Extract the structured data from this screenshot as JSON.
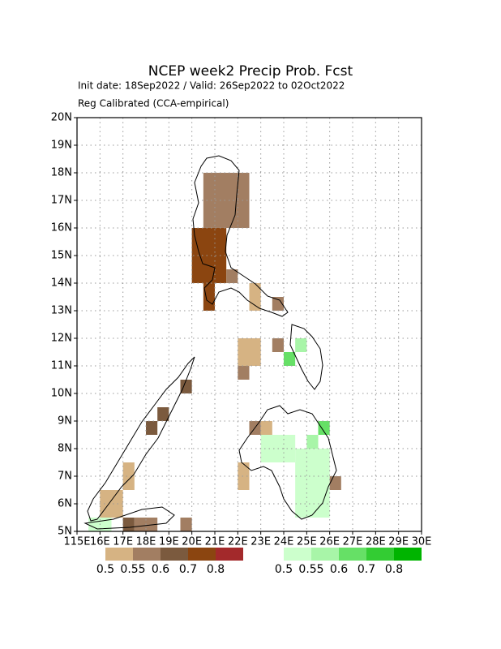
{
  "chart_data": {
    "type": "map",
    "title": "NCEP week2 Precip Prob. Fcst",
    "subtitle": "Init date: 18Sep2022 / Valid: 26Sep2022 to 02Oct2022",
    "note": "Reg Calibrated (CCA-empirical)",
    "xlim": [
      115,
      130
    ],
    "ylim": [
      5,
      20
    ],
    "xticks": [
      {
        "value": 115,
        "label": "115E"
      },
      {
        "value": 116,
        "label": "16E"
      },
      {
        "value": 117,
        "label": "17E"
      },
      {
        "value": 118,
        "label": "18E"
      },
      {
        "value": 119,
        "label": "19E"
      },
      {
        "value": 120,
        "label": "20E"
      },
      {
        "value": 121,
        "label": "21E"
      },
      {
        "value": 122,
        "label": "22E"
      },
      {
        "value": 123,
        "label": "23E"
      },
      {
        "value": 124,
        "label": "24E"
      },
      {
        "value": 125,
        "label": "25E"
      },
      {
        "value": 126,
        "label": "26E"
      },
      {
        "value": 127,
        "label": "27E"
      },
      {
        "value": 128,
        "label": "28E"
      },
      {
        "value": 129,
        "label": "29E"
      },
      {
        "value": 130,
        "label": "30E"
      }
    ],
    "yticks": [
      {
        "value": 5,
        "label": "5N"
      },
      {
        "value": 6,
        "label": "6N"
      },
      {
        "value": 7,
        "label": "7N"
      },
      {
        "value": 8,
        "label": "8N"
      },
      {
        "value": 9,
        "label": "9N"
      },
      {
        "value": 10,
        "label": "10N"
      },
      {
        "value": 11,
        "label": "11N"
      },
      {
        "value": 12,
        "label": "12N"
      },
      {
        "value": 13,
        "label": "13N"
      },
      {
        "value": 14,
        "label": "14N"
      },
      {
        "value": 15,
        "label": "15N"
      },
      {
        "value": 16,
        "label": "16N"
      },
      {
        "value": 17,
        "label": "17N"
      },
      {
        "value": 18,
        "label": "18N"
      },
      {
        "value": 19,
        "label": "19N"
      },
      {
        "value": 20,
        "label": "20N"
      }
    ],
    "grid": true,
    "legends": [
      {
        "colors": [
          "#d6b383",
          "#a27e62",
          "#7b5a3e",
          "#8b4510",
          "#a3292b"
        ],
        "labels": [
          0.5,
          0.55,
          0.6,
          0.7,
          0.8
        ]
      },
      {
        "colors": [
          "#ccffcc",
          "#a8f5a8",
          "#66e066",
          "#33cc33",
          "#00b400"
        ],
        "labels": [
          0.5,
          0.55,
          0.6,
          0.7,
          0.8
        ]
      }
    ],
    "regions": [
      {
        "legend": 0,
        "level": 1,
        "lon": [
          120.5,
          122.5
        ],
        "lat": [
          16,
          18
        ]
      },
      {
        "legend": 0,
        "level": 3,
        "lon": [
          120,
          121.5
        ],
        "lat": [
          14,
          16
        ]
      },
      {
        "legend": 0,
        "level": 3,
        "lon": [
          120.5,
          121
        ],
        "lat": [
          13,
          14
        ]
      },
      {
        "legend": 0,
        "level": 1,
        "lon": [
          121.5,
          122
        ],
        "lat": [
          14,
          14.5
        ]
      },
      {
        "legend": 0,
        "level": 0,
        "lon": [
          122.5,
          123
        ],
        "lat": [
          13,
          14
        ]
      },
      {
        "legend": 0,
        "level": 1,
        "lon": [
          123.5,
          124
        ],
        "lat": [
          13,
          13.5
        ]
      },
      {
        "legend": 0,
        "level": 1,
        "lon": [
          123.5,
          124
        ],
        "lat": [
          11.5,
          12
        ]
      },
      {
        "legend": 0,
        "level": 0,
        "lon": [
          122,
          123
        ],
        "lat": [
          11,
          12
        ]
      },
      {
        "legend": 0,
        "level": 1,
        "lon": [
          122,
          122.5
        ],
        "lat": [
          10.5,
          11
        ]
      },
      {
        "legend": 0,
        "level": 1,
        "lon": [
          122.5,
          123
        ],
        "lat": [
          8.5,
          9
        ]
      },
      {
        "legend": 0,
        "level": 0,
        "lon": [
          123,
          123.5
        ],
        "lat": [
          8.5,
          9
        ]
      },
      {
        "legend": 0,
        "level": 0,
        "lon": [
          122,
          122.5
        ],
        "lat": [
          6.5,
          7.5
        ]
      },
      {
        "legend": 0,
        "level": 1,
        "lon": [
          123,
          124
        ],
        "lat": [
          7.5,
          8
        ]
      },
      {
        "legend": 0,
        "level": 0,
        "lon": [
          125,
          125.5
        ],
        "lat": [
          6,
          7.5
        ]
      },
      {
        "legend": 0,
        "level": 1,
        "lon": [
          126,
          126.5
        ],
        "lat": [
          6.5,
          7
        ]
      },
      {
        "legend": 0,
        "level": 2,
        "lon": [
          119.5,
          120
        ],
        "lat": [
          10,
          10.5
        ]
      },
      {
        "legend": 0,
        "level": 2,
        "lon": [
          118.5,
          119
        ],
        "lat": [
          9,
          9.5
        ]
      },
      {
        "legend": 0,
        "level": 2,
        "lon": [
          118,
          118.5
        ],
        "lat": [
          8.5,
          9
        ]
      },
      {
        "legend": 0,
        "level": 0,
        "lon": [
          116,
          117
        ],
        "lat": [
          5.5,
          6.5
        ]
      },
      {
        "legend": 0,
        "level": 0,
        "lon": [
          117,
          117.5
        ],
        "lat": [
          6.5,
          7.5
        ]
      },
      {
        "legend": 0,
        "level": 2,
        "lon": [
          117,
          117.5
        ],
        "lat": [
          5,
          5.5
        ]
      },
      {
        "legend": 0,
        "level": 1,
        "lon": [
          117.5,
          118.5
        ],
        "lat": [
          5,
          5.5
        ]
      },
      {
        "legend": 0,
        "level": 1,
        "lon": [
          119.5,
          120
        ],
        "lat": [
          5,
          5.5
        ]
      },
      {
        "legend": 1,
        "level": 0,
        "lon": [
          124.5,
          126
        ],
        "lat": [
          5.5,
          8
        ]
      },
      {
        "legend": 1,
        "level": 0,
        "lon": [
          123,
          124.5
        ],
        "lat": [
          7.5,
          8.5
        ]
      },
      {
        "legend": 1,
        "level": 1,
        "lon": [
          124.5,
          125
        ],
        "lat": [
          11.5,
          12
        ]
      },
      {
        "legend": 1,
        "level": 2,
        "lon": [
          124,
          124.5
        ],
        "lat": [
          11,
          11.5
        ]
      },
      {
        "legend": 1,
        "level": 2,
        "lon": [
          125.5,
          126
        ],
        "lat": [
          8.5,
          9
        ]
      },
      {
        "legend": 1,
        "level": 1,
        "lon": [
          125,
          125.5
        ],
        "lat": [
          8,
          8.5
        ]
      },
      {
        "legend": 1,
        "level": 0,
        "lon": [
          115.5,
          116.5
        ],
        "lat": [
          5,
          5.5
        ]
      }
    ]
  }
}
